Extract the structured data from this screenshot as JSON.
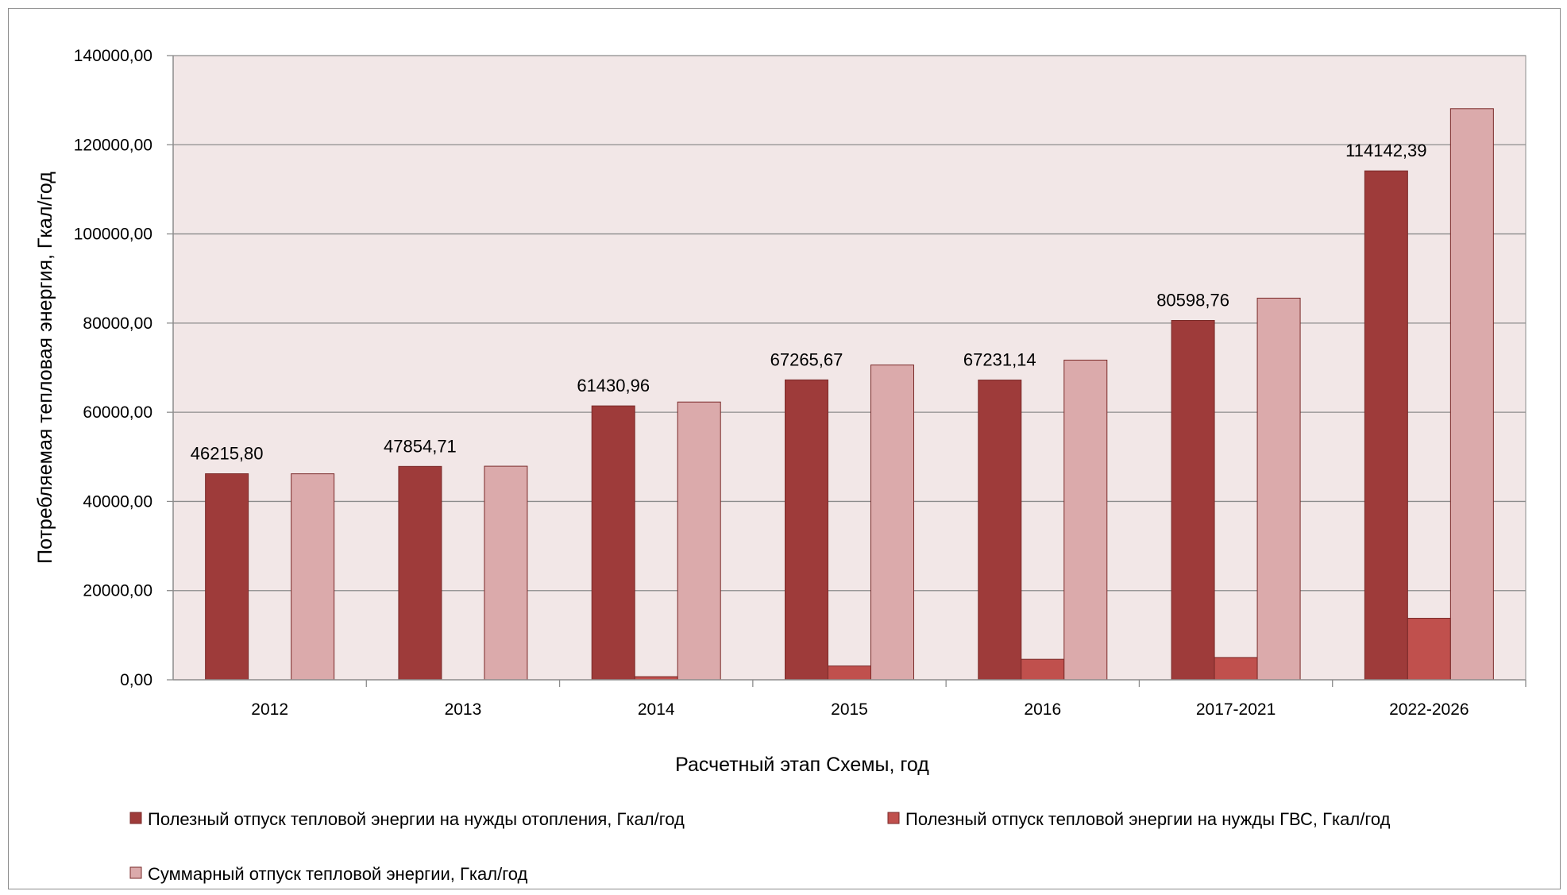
{
  "chart_data": {
    "type": "bar",
    "title": "",
    "xlabel": "Расчетный этап Схемы, год",
    "ylabel": "Потребляемая тепловая энергия, Гкал/год",
    "ylim": [
      0,
      140000
    ],
    "y_ticks": [
      0,
      20000,
      40000,
      60000,
      80000,
      100000,
      120000,
      140000
    ],
    "y_tick_labels": [
      "0,00",
      "20000,00",
      "40000,00",
      "60000,00",
      "80000,00",
      "100000,00",
      "120000,00",
      "140000,00"
    ],
    "grid": true,
    "legend_position": "bottom",
    "categories": [
      "2012",
      "2013",
      "2014",
      "2015",
      "2016",
      "2017-2021",
      "2022-2026"
    ],
    "series": [
      {
        "name": "Полезный отпуск тепловой энергии на нужды отопления, Гкал/год",
        "color": "#9e3b3a",
        "values": [
          46215.8,
          47854.71,
          61430.96,
          67265.67,
          67231.14,
          80598.76,
          114142.39
        ],
        "data_labels": [
          "46215,80",
          "47854,71",
          "61430,96",
          "67265,67",
          "67231,14",
          "80598,76",
          "114142,39"
        ]
      },
      {
        "name": "Полезный отпуск тепловой энергии на нужды ГВС, Гкал/год",
        "color": "#c0504d",
        "values": [
          0,
          0,
          700,
          3100,
          4600,
          5000,
          13800
        ]
      },
      {
        "name": "Суммарный отпуск тепловой энергии, Гкал/год",
        "color": "#dbaaab",
        "values": [
          46200,
          47900,
          62300,
          70600,
          71700,
          85600,
          128100
        ]
      }
    ]
  }
}
